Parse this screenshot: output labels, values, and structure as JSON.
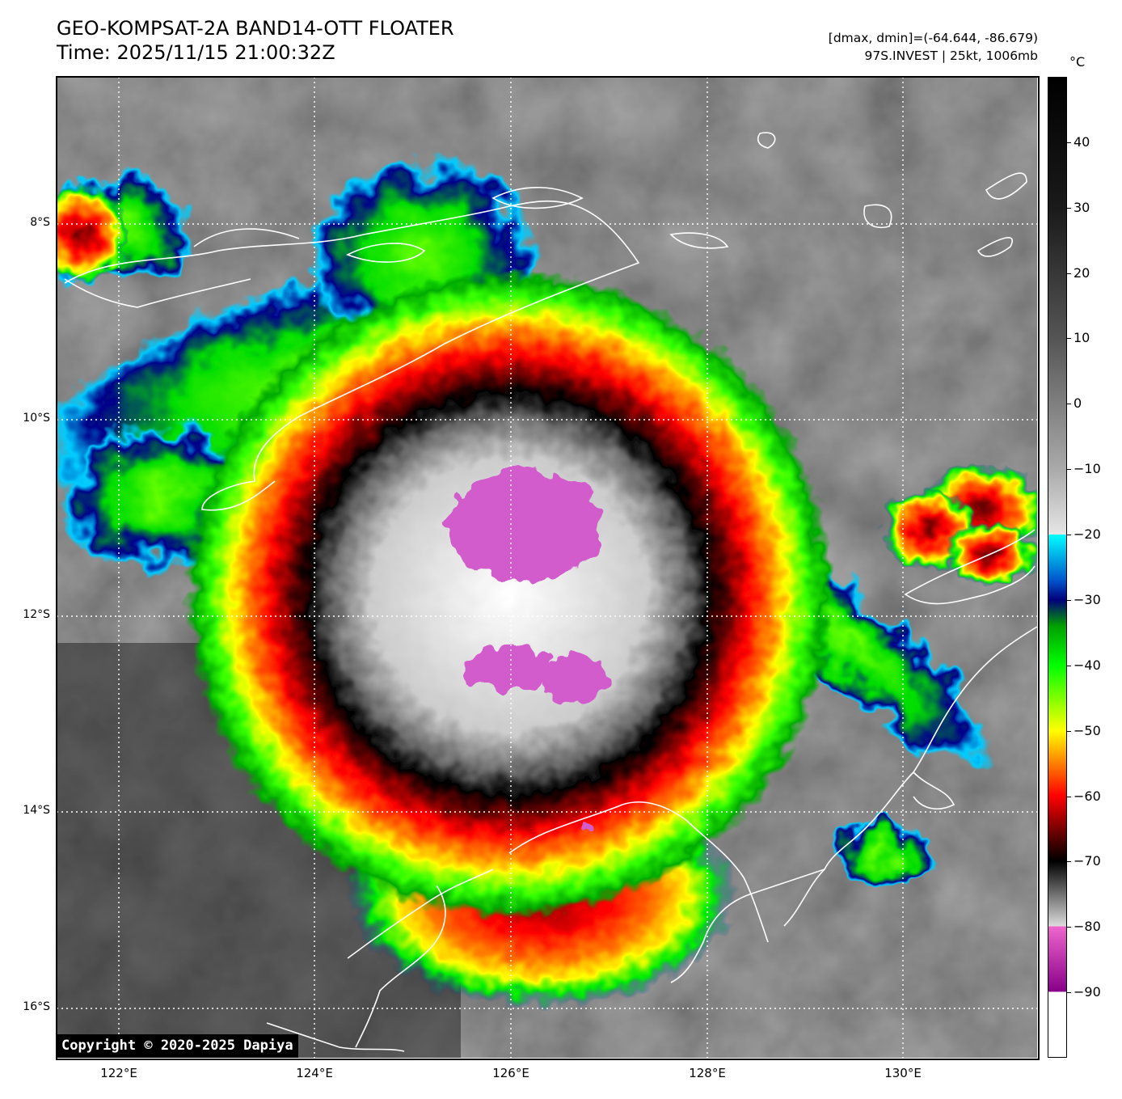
{
  "header": {
    "title_line1": "GEO-KOMPSAT-2A BAND14-OTT FLOATER",
    "title_line2": "Time: 2025/11/15 21:00:32Z",
    "info_line1": "[dmax, dmin]=(-64.644, -86.679)",
    "info_line2": "97S.INVEST | 25kt, 1006mb"
  },
  "map": {
    "lat_labels": [
      "8°S",
      "10°S",
      "12°S",
      "14°S",
      "16°S"
    ],
    "lon_labels": [
      "122°E",
      "124°E",
      "126°E",
      "128°E",
      "130°E"
    ],
    "lon_range": [
      121.375,
      131.375
    ],
    "lat_range": [
      -6.5,
      -16.5
    ],
    "storm_center": {
      "lon": 125.5,
      "lat": -12.0
    },
    "copyright": "Copyright © 2020-2025 Dapiya"
  },
  "colorbar": {
    "unit": "°C",
    "min": -100,
    "max": 50,
    "ticks": [
      "40",
      "30",
      "20",
      "10",
      "0",
      "−10",
      "−20",
      "−30",
      "−40",
      "−50",
      "−60",
      "−70",
      "−80",
      "−90"
    ],
    "tick_values": [
      40,
      30,
      20,
      10,
      0,
      -10,
      -20,
      -30,
      -40,
      -50,
      -60,
      -70,
      -80,
      -90
    ],
    "stops": [
      {
        "t": 50,
        "color": "#000000"
      },
      {
        "t": 30,
        "color": "#1a1a1a"
      },
      {
        "t": 10,
        "color": "#555555"
      },
      {
        "t": -10,
        "color": "#aaaaaa"
      },
      {
        "t": -20,
        "color": "#e6e6e6"
      },
      {
        "t": -20.01,
        "color": "#00ffff"
      },
      {
        "t": -27,
        "color": "#0055cc"
      },
      {
        "t": -30,
        "color": "#00007a"
      },
      {
        "t": -34,
        "color": "#00a000"
      },
      {
        "t": -40,
        "color": "#00ff00"
      },
      {
        "t": -50,
        "color": "#ffff00"
      },
      {
        "t": -55,
        "color": "#ff8000"
      },
      {
        "t": -60,
        "color": "#ff0000"
      },
      {
        "t": -66,
        "color": "#600000"
      },
      {
        "t": -70,
        "color": "#000000"
      },
      {
        "t": -80,
        "color": "#dddddd"
      },
      {
        "t": -80.01,
        "color": "#ee66cc"
      },
      {
        "t": -90,
        "color": "#880088"
      },
      {
        "t": -90.01,
        "color": "#ffffff"
      },
      {
        "t": -100,
        "color": "#ffffff"
      }
    ]
  }
}
